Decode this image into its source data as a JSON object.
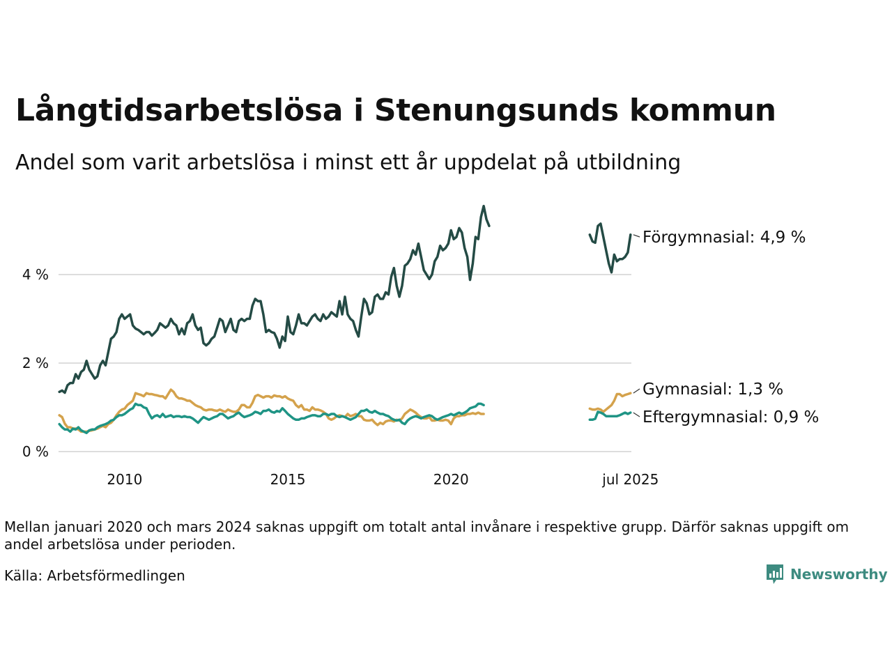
{
  "header": {
    "title": "Långtidsarbetslösa i Stenungsunds kommun",
    "subtitle": "Andel som varit arbetslösa i minst ett år uppdelat på utbildning"
  },
  "footer": {
    "note": "Mellan januari 2020 och mars 2024 saknas uppgift om totalt antal invånare i respektive grupp. Därför saknas uppgift om andel arbetslösa under perioden.",
    "source": "Källa: Arbetsförmedlingen",
    "brand": "Newsworthy"
  },
  "colors": {
    "forgymnasial": "#244b45",
    "gymnasial": "#d4a24c",
    "eftergymnasial": "#1f9485",
    "grid": "#dddddd",
    "brand": "#3d8b80"
  },
  "chart_data": {
    "type": "line",
    "title": "Långtidsarbetslösa i Stenungsunds kommun",
    "subtitle": "Andel som varit arbetslösa i minst ett år uppdelat på utbildning",
    "xlabel": "",
    "ylabel": "",
    "ylim": [
      0,
      5.7
    ],
    "xlim": [
      "2008-01",
      "2025-07"
    ],
    "y_ticks": [
      0,
      2,
      4
    ],
    "y_tick_labels": [
      "0 %",
      "2 %",
      "4 %"
    ],
    "x_ticks": [
      "2010-01",
      "2015-01",
      "2020-01",
      "2025-07"
    ],
    "x_tick_labels": [
      "2010",
      "2015",
      "2020",
      "jul 2025"
    ],
    "grid": true,
    "legend": "direct labels at right end of lines",
    "series": [
      {
        "name": "Förgymnasial",
        "color": "#244b45",
        "end_label": "Förgymnasial: 4,9 %",
        "segments": [
          {
            "start": "2008-01",
            "values": [
              1.35,
              1.38,
              1.33,
              1.5,
              1.55,
              1.55,
              1.75,
              1.65,
              1.8,
              1.85,
              2.05,
              1.85,
              1.75,
              1.65,
              1.7,
              1.95,
              2.05,
              1.95,
              2.25,
              2.55,
              2.6,
              2.7,
              3.0,
              3.1,
              3.0,
              3.05,
              3.1,
              2.85,
              2.78,
              2.75,
              2.7,
              2.65,
              2.7,
              2.7,
              2.62,
              2.68,
              2.75,
              2.9,
              2.85,
              2.8,
              2.85,
              3.0,
              2.9,
              2.85,
              2.65,
              2.78,
              2.65,
              2.9,
              2.95,
              3.1,
              2.85,
              2.75,
              2.8,
              2.45,
              2.4,
              2.45,
              2.55,
              2.6,
              2.8,
              3.0,
              2.95,
              2.7,
              2.85,
              3.0,
              2.75,
              2.7,
              2.95,
              3.0,
              2.95,
              3.0,
              3.0,
              3.3,
              3.45,
              3.4,
              3.4,
              3.1,
              2.7,
              2.75,
              2.7,
              2.68,
              2.55,
              2.35,
              2.6,
              2.5,
              3.05,
              2.7,
              2.65,
              2.85,
              3.1,
              2.9,
              2.9,
              2.85,
              2.95,
              3.05,
              3.1,
              3.0,
              2.95,
              3.1,
              3.0,
              3.05,
              3.15,
              3.1,
              3.05,
              3.4,
              3.1,
              3.5,
              3.1,
              3.0,
              2.95,
              2.75,
              2.6,
              3.05,
              3.45,
              3.35,
              3.1,
              3.15,
              3.5,
              3.55,
              3.45,
              3.45,
              3.6,
              3.55,
              3.95,
              4.15,
              3.75,
              3.5,
              3.75,
              4.2,
              4.25,
              4.35,
              4.55,
              4.45,
              4.7,
              4.4,
              4.1,
              4.0,
              3.9,
              4.0,
              4.3,
              4.4,
              4.65,
              4.55,
              4.6,
              4.7,
              5.0,
              4.8,
              4.85,
              5.05,
              4.95,
              4.6,
              4.4,
              3.88,
              4.25,
              4.85,
              4.8,
              5.3,
              5.55,
              5.25,
              5.1
            ]
          },
          {
            "start": "2024-04",
            "values": [
              4.9,
              4.75,
              4.72,
              5.1,
              5.15,
              4.85,
              4.55,
              4.25,
              4.05,
              4.45,
              4.3,
              4.35,
              4.35,
              4.4,
              4.5,
              4.9
            ]
          }
        ]
      },
      {
        "name": "Gymnasial",
        "color": "#d4a24c",
        "end_label": "Gymnasial: 1,3 %",
        "segments": [
          {
            "start": "2008-01",
            "values": [
              0.82,
              0.78,
              0.63,
              0.55,
              0.55,
              0.52,
              0.52,
              0.5,
              0.45,
              0.45,
              0.45,
              0.47,
              0.48,
              0.5,
              0.52,
              0.55,
              0.58,
              0.55,
              0.62,
              0.65,
              0.72,
              0.82,
              0.9,
              0.95,
              0.97,
              1.05,
              1.1,
              1.15,
              1.32,
              1.3,
              1.28,
              1.25,
              1.32,
              1.3,
              1.3,
              1.28,
              1.27,
              1.25,
              1.25,
              1.2,
              1.3,
              1.4,
              1.35,
              1.25,
              1.2,
              1.2,
              1.18,
              1.15,
              1.15,
              1.1,
              1.05,
              1.02,
              1.0,
              0.95,
              0.93,
              0.95,
              0.95,
              0.93,
              0.92,
              0.95,
              0.92,
              0.9,
              0.95,
              0.92,
              0.9,
              0.9,
              0.95,
              1.05,
              1.05,
              1.0,
              1.0,
              1.1,
              1.25,
              1.28,
              1.25,
              1.22,
              1.25,
              1.25,
              1.22,
              1.27,
              1.25,
              1.25,
              1.22,
              1.25,
              1.2,
              1.17,
              1.15,
              1.05,
              1.0,
              1.05,
              0.95,
              0.95,
              0.92,
              1.0,
              0.95,
              0.95,
              0.93,
              0.9,
              0.85,
              0.75,
              0.72,
              0.75,
              0.8,
              0.82,
              0.8,
              0.78,
              0.85,
              0.8,
              0.82,
              0.85,
              0.8,
              0.8,
              0.72,
              0.7,
              0.7,
              0.72,
              0.65,
              0.6,
              0.65,
              0.62,
              0.68,
              0.7,
              0.7,
              0.68,
              0.72,
              0.7,
              0.75,
              0.85,
              0.9,
              0.95,
              0.92,
              0.88,
              0.82,
              0.78,
              0.75,
              0.75,
              0.78,
              0.7,
              0.7,
              0.72,
              0.7,
              0.7,
              0.72,
              0.7,
              0.62,
              0.75,
              0.8,
              0.8,
              0.82,
              0.82,
              0.85,
              0.85,
              0.87,
              0.85,
              0.88,
              0.85,
              0.85
            ]
          },
          {
            "start": "2024-04",
            "values": [
              0.97,
              0.95,
              0.95,
              0.97,
              0.95,
              0.9,
              0.95,
              1.0,
              1.05,
              1.15,
              1.3,
              1.3,
              1.25,
              1.28,
              1.3,
              1.32
            ]
          }
        ]
      },
      {
        "name": "Eftergymnasial",
        "color": "#1f9485",
        "end_label": "Eftergymnasial: 0,9 %",
        "segments": [
          {
            "start": "2008-01",
            "values": [
              0.62,
              0.55,
              0.5,
              0.5,
              0.45,
              0.52,
              0.5,
              0.55,
              0.48,
              0.45,
              0.42,
              0.48,
              0.5,
              0.5,
              0.55,
              0.58,
              0.6,
              0.62,
              0.65,
              0.7,
              0.72,
              0.78,
              0.82,
              0.82,
              0.85,
              0.9,
              0.95,
              0.98,
              1.08,
              1.05,
              1.05,
              1.0,
              0.98,
              0.85,
              0.75,
              0.8,
              0.82,
              0.78,
              0.85,
              0.78,
              0.8,
              0.82,
              0.78,
              0.8,
              0.8,
              0.78,
              0.8,
              0.78,
              0.78,
              0.75,
              0.7,
              0.65,
              0.72,
              0.78,
              0.75,
              0.72,
              0.75,
              0.78,
              0.8,
              0.85,
              0.85,
              0.8,
              0.75,
              0.78,
              0.8,
              0.85,
              0.88,
              0.82,
              0.78,
              0.8,
              0.82,
              0.85,
              0.9,
              0.88,
              0.85,
              0.92,
              0.92,
              0.95,
              0.9,
              0.88,
              0.92,
              0.9,
              0.98,
              0.92,
              0.85,
              0.8,
              0.75,
              0.72,
              0.72,
              0.75,
              0.75,
              0.78,
              0.8,
              0.82,
              0.82,
              0.8,
              0.8,
              0.85,
              0.85,
              0.82,
              0.85,
              0.85,
              0.8,
              0.78,
              0.8,
              0.78,
              0.75,
              0.72,
              0.75,
              0.78,
              0.85,
              0.92,
              0.92,
              0.95,
              0.9,
              0.88,
              0.92,
              0.88,
              0.85,
              0.85,
              0.82,
              0.8,
              0.75,
              0.72,
              0.7,
              0.72,
              0.65,
              0.62,
              0.7,
              0.75,
              0.78,
              0.8,
              0.78,
              0.75,
              0.78,
              0.8,
              0.82,
              0.8,
              0.75,
              0.72,
              0.75,
              0.78,
              0.8,
              0.82,
              0.85,
              0.82,
              0.85,
              0.88,
              0.85,
              0.88,
              0.92,
              0.98,
              1.0,
              1.02,
              1.08,
              1.08,
              1.05
            ]
          },
          {
            "start": "2024-04",
            "values": [
              0.72,
              0.72,
              0.74,
              0.9,
              0.88,
              0.85,
              0.8,
              0.8,
              0.8,
              0.8,
              0.8,
              0.82,
              0.85,
              0.88,
              0.85,
              0.88
            ]
          }
        ]
      }
    ]
  }
}
